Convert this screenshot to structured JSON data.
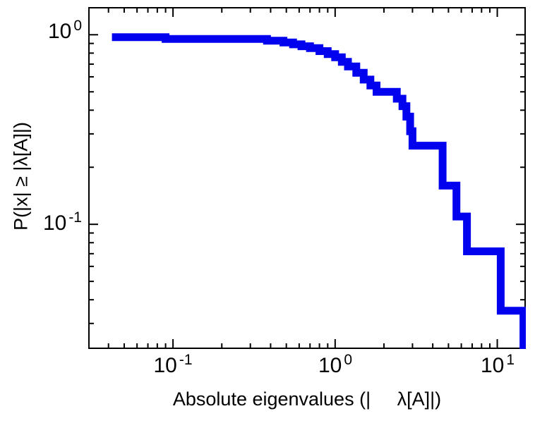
{
  "chart_data": {
    "type": "line",
    "subtype": "step-ccdf",
    "title": "",
    "xlabel": "Absolute eigenvalues (|     λ[A]|)",
    "ylabel": "P(|x| ≥ |λ[A]|)",
    "xscale": "log",
    "yscale": "log",
    "xlim": [
      0.03,
      15
    ],
    "ylim": [
      0.022,
      1.4
    ],
    "x_ticks": [
      {
        "value": 0.1,
        "base": "10",
        "exp": "-1"
      },
      {
        "value": 1,
        "base": "10",
        "exp": "0"
      },
      {
        "value": 10,
        "base": "10",
        "exp": "1"
      }
    ],
    "y_ticks": [
      {
        "value": 1,
        "base": "10",
        "exp": "0"
      },
      {
        "value": 0.1,
        "base": "10",
        "exp": "-1"
      }
    ],
    "line_color": "#0202ee",
    "line_width": 11,
    "frame_color": "#000000",
    "start": {
      "x": 0.042,
      "p": 0.97
    },
    "steps": [
      [
        0.09,
        0.95
      ],
      [
        0.38,
        0.93
      ],
      [
        0.48,
        0.91
      ],
      [
        0.55,
        0.89
      ],
      [
        0.62,
        0.87
      ],
      [
        0.7,
        0.85
      ],
      [
        0.8,
        0.82
      ],
      [
        0.9,
        0.79
      ],
      [
        1.0,
        0.76
      ],
      [
        1.1,
        0.72
      ],
      [
        1.2,
        0.68
      ],
      [
        1.35,
        0.63
      ],
      [
        1.5,
        0.58
      ],
      [
        1.65,
        0.54
      ],
      [
        1.8,
        0.5
      ],
      [
        2.4,
        0.46
      ],
      [
        2.6,
        0.42
      ],
      [
        2.75,
        0.37
      ],
      [
        2.9,
        0.31
      ],
      [
        3.0,
        0.26
      ],
      [
        4.6,
        0.16
      ],
      [
        5.6,
        0.11
      ],
      [
        6.5,
        0.072
      ],
      [
        10.5,
        0.035
      ],
      [
        14.5,
        0.01
      ]
    ]
  }
}
